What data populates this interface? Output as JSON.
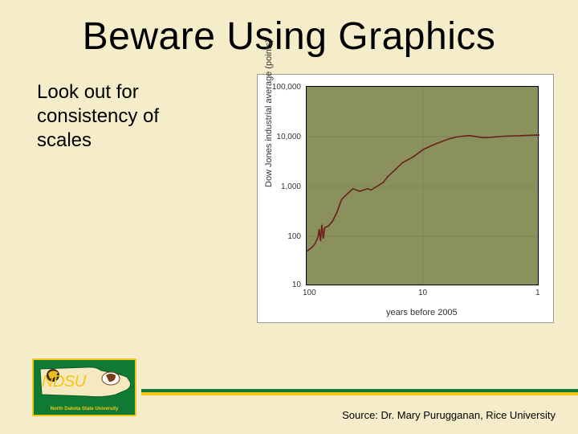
{
  "slide": {
    "title": "Beware Using Graphics",
    "subtitle": "Look out for consistency of scales",
    "source_line": "Source: Dr. Mary Purugganan, Rice University",
    "background_color": "#f5edc9"
  },
  "logo": {
    "acronym": "NDSU",
    "subtitle": "North Dakota State University",
    "bg_color": "#0e7a34",
    "border_color": "#f5c518",
    "text_color": "#f5c518"
  },
  "footer_stripe": {
    "green": "#0e7a34",
    "yellow": "#f5c518"
  },
  "chart": {
    "type": "line",
    "panel_bg": "#ffffff",
    "plot_bg": "#8a915d",
    "axis_color": "#000000",
    "line_color": "#6b1f1f",
    "line_width": 1.6,
    "ylabel": "Dow Jones industrial average (points)",
    "xlabel": "years before 2005",
    "yscale": "log",
    "xscale": "log_reversed",
    "ylim": [
      10,
      100000
    ],
    "xlim": [
      100,
      1
    ],
    "yticks": [
      {
        "value": 10,
        "label": "10"
      },
      {
        "value": 100,
        "label": "100"
      },
      {
        "value": 1000,
        "label": "1,000"
      },
      {
        "value": 10000,
        "label": "10,000"
      },
      {
        "value": 100000,
        "label": "100,000"
      }
    ],
    "xticks": [
      {
        "value": 100,
        "label": "100"
      },
      {
        "value": 10,
        "label": "10"
      },
      {
        "value": 1,
        "label": "1"
      }
    ],
    "label_fontsize": 11,
    "tick_fontsize": 10,
    "series": {
      "x_years_before_2005": [
        100,
        90,
        85,
        80,
        78,
        76,
        74,
        72,
        70,
        65,
        60,
        55,
        50,
        45,
        40,
        35,
        30,
        28,
        25,
        22,
        20,
        18,
        15,
        12,
        10,
        8,
        6,
        5,
        4,
        3,
        2,
        1
      ],
      "y_djia_points": [
        50,
        60,
        70,
        95,
        140,
        80,
        170,
        90,
        150,
        160,
        200,
        300,
        550,
        700,
        900,
        800,
        900,
        850,
        1000,
        1200,
        1600,
        2000,
        3000,
        4000,
        5500,
        7000,
        9000,
        10000,
        10500,
        9500,
        10200,
        10800
      ]
    }
  }
}
